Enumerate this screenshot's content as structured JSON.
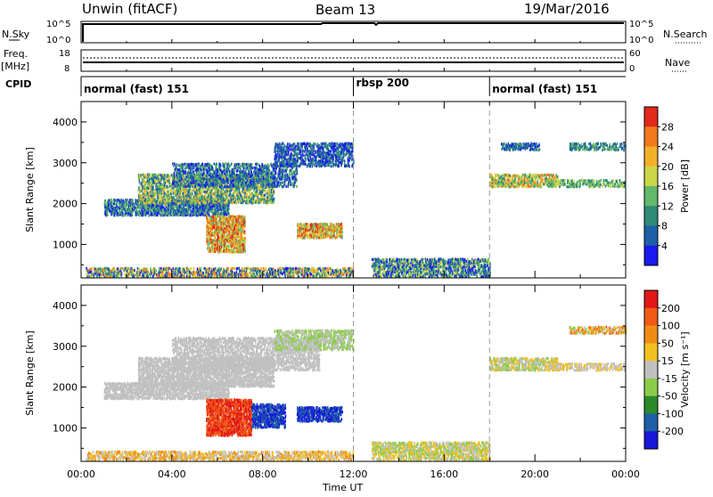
{
  "header": {
    "station": "Unwin (fitACF)",
    "beam": "Beam 13",
    "date": "19/Mar/2016"
  },
  "top_panels": {
    "nsky_label": "N.Sky",
    "nsky_ticks": [
      "10^5",
      "10^0"
    ],
    "nsearch_label": "N.Search",
    "nsearch_ticks": [
      "10^5",
      "10^0"
    ],
    "freq_label": "Freq.",
    "freq_unit": "[MHz]",
    "freq_ticks": [
      "18",
      "8"
    ],
    "nave_label": "Nave",
    "nave_ticks": [
      "60",
      "0"
    ],
    "cpid_label": "CPID",
    "modes": [
      {
        "label": "normal (fast) 151",
        "start_hour": 0
      },
      {
        "label": "rbsp 200",
        "start_hour": 12
      },
      {
        "label": "normal (fast) 151",
        "start_hour": 18
      }
    ]
  },
  "chart_data": [
    {
      "type": "heatmap",
      "parameter": "Power",
      "ylabel": "Slant Range [km]",
      "colorbar_label": "Power [dB]",
      "colorbar_ticks": [
        "28",
        "24",
        "20",
        "16",
        "12",
        "8",
        "4"
      ],
      "colorbar_colors": [
        "#1a1aee",
        "#1f5fa8",
        "#2f8a78",
        "#63b86a",
        "#c8d648",
        "#f2b02a",
        "#f07a1c",
        "#e22a1a"
      ],
      "y_ticks": [
        "4000",
        "3000",
        "2000",
        "1000"
      ],
      "ylim": [
        180,
        4500
      ],
      "x_ticks": [
        "00:00",
        "04:00",
        "08:00",
        "12:00",
        "16:00",
        "20:00",
        "00:00"
      ],
      "xlim_hours": [
        0,
        24
      ],
      "features": [
        {
          "h0": 0.2,
          "h1": 12.0,
          "r0": 200,
          "r1": 420,
          "bands": [
            0,
            6
          ],
          "density": 0.55
        },
        {
          "h0": 12.8,
          "h1": 18.0,
          "r0": 200,
          "r1": 650,
          "bands": [
            0,
            4
          ],
          "density": 0.6
        },
        {
          "h0": 1.0,
          "h1": 6.5,
          "r0": 1700,
          "r1": 2100,
          "bands": [
            0,
            3
          ],
          "density": 0.65
        },
        {
          "h0": 2.5,
          "h1": 8.5,
          "r0": 2000,
          "r1": 2700,
          "bands": [
            1,
            5
          ],
          "density": 0.55
        },
        {
          "h0": 4.0,
          "h1": 9.5,
          "r0": 2400,
          "r1": 3000,
          "bands": [
            0,
            3
          ],
          "density": 0.45
        },
        {
          "h0": 5.5,
          "h1": 7.2,
          "r0": 800,
          "r1": 1700,
          "bands": [
            3,
            7
          ],
          "density": 0.7
        },
        {
          "h0": 9.5,
          "h1": 11.5,
          "r0": 1150,
          "r1": 1500,
          "bands": [
            3,
            7
          ],
          "density": 0.7
        },
        {
          "h0": 8.5,
          "h1": 12.0,
          "r0": 2900,
          "r1": 3500,
          "bands": [
            0,
            2
          ],
          "density": 0.5
        },
        {
          "h0": 18.0,
          "h1": 21.0,
          "r0": 2400,
          "r1": 2700,
          "bands": [
            2,
            6
          ],
          "density": 0.55
        },
        {
          "h0": 20.5,
          "h1": 24.0,
          "r0": 2400,
          "r1": 2600,
          "bands": [
            2,
            4
          ],
          "density": 0.45
        },
        {
          "h0": 18.5,
          "h1": 20.2,
          "r0": 3300,
          "r1": 3500,
          "bands": [
            0,
            2
          ],
          "density": 0.6
        },
        {
          "h0": 21.5,
          "h1": 24.0,
          "r0": 3300,
          "r1": 3500,
          "bands": [
            1,
            3
          ],
          "density": 0.5
        }
      ]
    },
    {
      "type": "heatmap",
      "parameter": "Velocity",
      "ylabel": "Slant Range [km]",
      "colorbar_label": "Velocity [m s⁻¹]",
      "colorbar_ticks": [
        "200",
        "100",
        "50",
        "15",
        "-15",
        "-50",
        "-100",
        "-200"
      ],
      "colorbar_colors": [
        "#1818d8",
        "#1f5fa8",
        "#2a8a2a",
        "#8ccc4a",
        "#c0c0c0",
        "#f2c020",
        "#f08c14",
        "#f05a14",
        "#e21818"
      ],
      "y_ticks": [
        "4000",
        "3000",
        "2000",
        "1000"
      ],
      "ylim": [
        180,
        4500
      ],
      "x_ticks": [
        "00:00",
        "04:00",
        "08:00",
        "12:00",
        "16:00",
        "20:00",
        "00:00"
      ],
      "xlim_hours": [
        0,
        24
      ],
      "xlabel": "Time UT",
      "features": [
        {
          "h0": 0.2,
          "h1": 12.0,
          "r0": 200,
          "r1": 420,
          "bands": [
            4,
            6
          ],
          "density": 0.5
        },
        {
          "h0": 12.8,
          "h1": 18.0,
          "r0": 200,
          "r1": 650,
          "bands": [
            3,
            5
          ],
          "density": 0.55
        },
        {
          "h0": 1.0,
          "h1": 6.5,
          "r0": 1700,
          "r1": 2100,
          "bands": [
            4,
            4
          ],
          "density": 0.65
        },
        {
          "h0": 2.5,
          "h1": 8.5,
          "r0": 2000,
          "r1": 2700,
          "bands": [
            4,
            4
          ],
          "density": 0.6
        },
        {
          "h0": 4.0,
          "h1": 10.5,
          "r0": 2400,
          "r1": 3200,
          "bands": [
            4,
            4
          ],
          "density": 0.5
        },
        {
          "h0": 5.5,
          "h1": 7.5,
          "r0": 800,
          "r1": 1700,
          "bands": [
            7,
            8
          ],
          "density": 0.75
        },
        {
          "h0": 7.5,
          "h1": 9.0,
          "r0": 1000,
          "r1": 1600,
          "bands": [
            0,
            1
          ],
          "density": 0.65
        },
        {
          "h0": 9.5,
          "h1": 11.5,
          "r0": 1150,
          "r1": 1500,
          "bands": [
            0,
            1
          ],
          "density": 0.7
        },
        {
          "h0": 8.5,
          "h1": 12.0,
          "r0": 2900,
          "r1": 3400,
          "bands": [
            3,
            4
          ],
          "density": 0.5
        },
        {
          "h0": 18.0,
          "h1": 21.0,
          "r0": 2400,
          "r1": 2700,
          "bands": [
            3,
            5
          ],
          "density": 0.55
        },
        {
          "h0": 20.5,
          "h1": 24.0,
          "r0": 2400,
          "r1": 2600,
          "bands": [
            4,
            5
          ],
          "density": 0.45
        },
        {
          "h0": 21.5,
          "h1": 24.0,
          "r0": 3300,
          "r1": 3500,
          "bands": [
            3,
            7
          ],
          "density": 0.5
        }
      ]
    }
  ]
}
